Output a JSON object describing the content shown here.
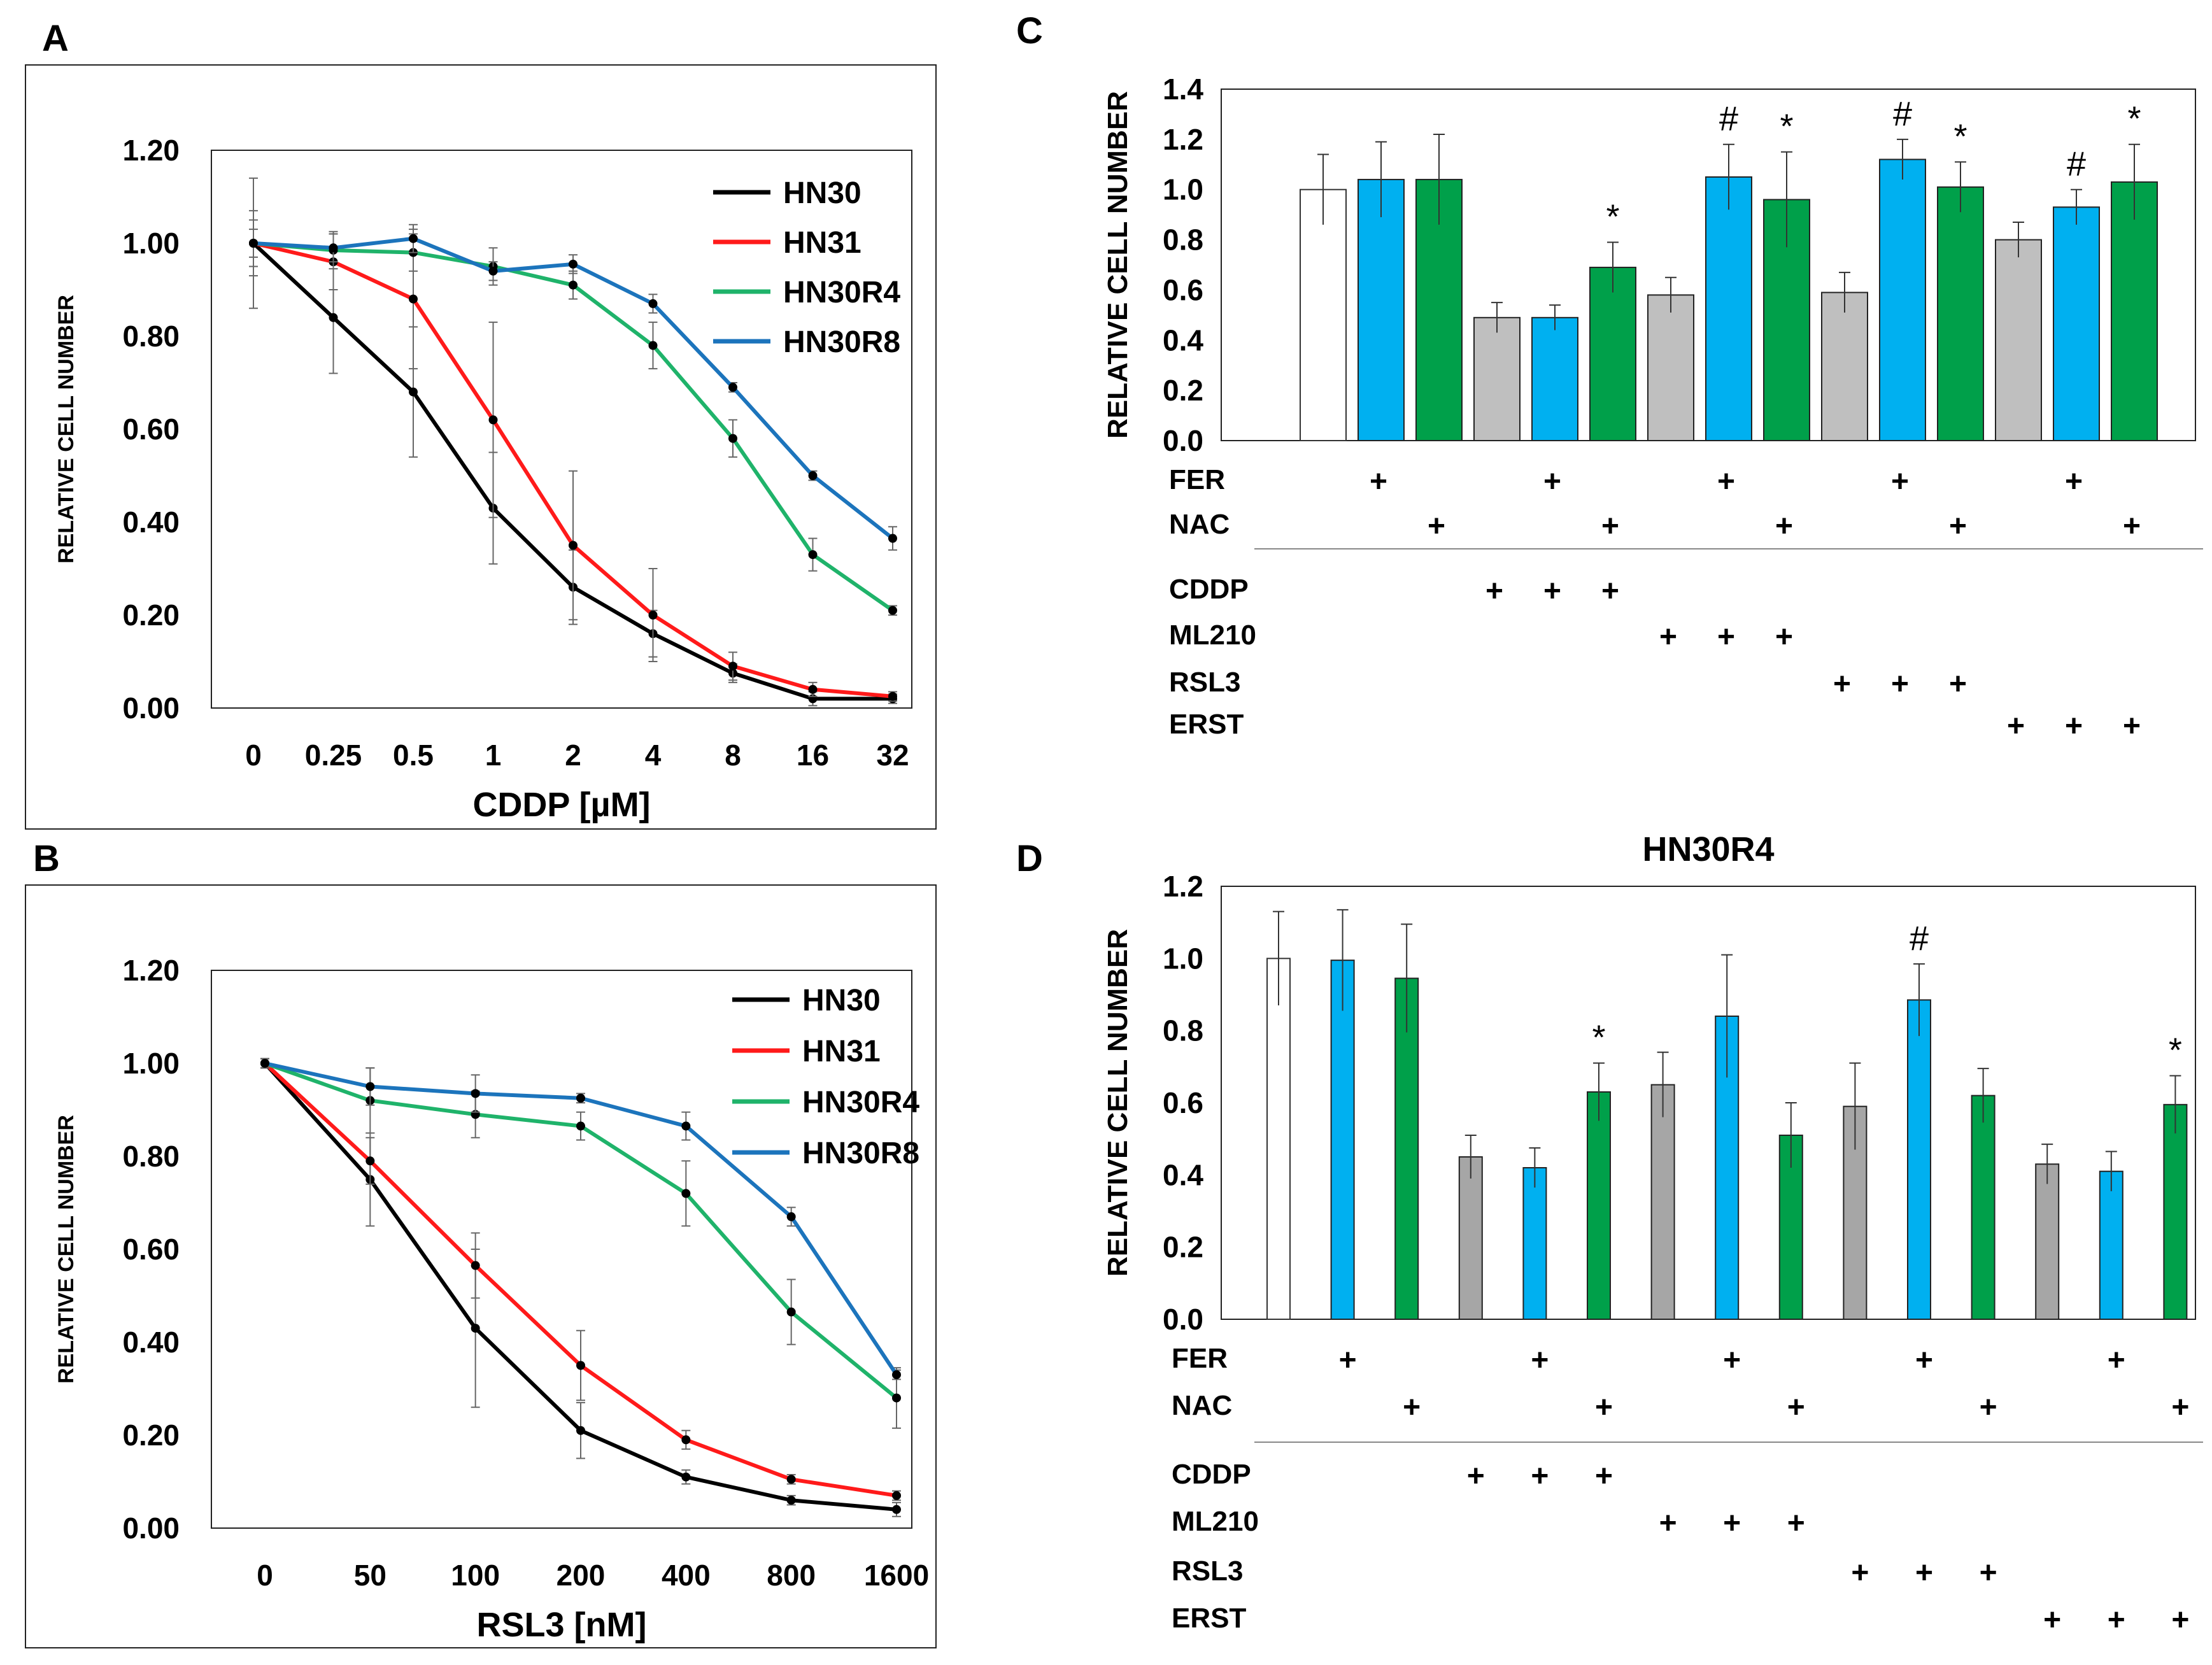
{
  "colors": {
    "HN30": "#000000",
    "HN31": "#ff1a1a",
    "HN30R4": "#1fb36a",
    "HN30R8": "#1c74bc",
    "ctrl": "#ffffff",
    "ctrl_stroke": "#333333",
    "fer": "#00b0f0",
    "nac": "#00a04a",
    "drug": "#bfbfbf",
    "drug_d": "#a6a6a6"
  },
  "panels": {
    "A": "A",
    "B": "B",
    "C": "C",
    "D": "D"
  },
  "chart_data": [
    {
      "id": "A",
      "type": "line",
      "categories": [
        "0",
        "0.25",
        "0.5",
        "1",
        "2",
        "4",
        "8",
        "16",
        "32"
      ],
      "xlabel": "CDDP [µM]",
      "ylabel": "RELATIVE CELL NUMBER",
      "ylim": [
        0,
        1.2
      ],
      "yticks": [
        "0.00",
        "0.20",
        "0.40",
        "0.60",
        "0.80",
        "1.00",
        "1.20"
      ],
      "legend_position": "top-right",
      "series": [
        {
          "name": "HN30",
          "values": [
            1.0,
            0.84,
            0.68,
            0.43,
            0.26,
            0.16,
            0.075,
            0.02,
            0.02
          ],
          "err": [
            0.14,
            0.12,
            0.14,
            0.12,
            0.08,
            0.05,
            0.02,
            0.015,
            0.01
          ]
        },
        {
          "name": "HN31",
          "values": [
            1.0,
            0.96,
            0.88,
            0.62,
            0.35,
            0.2,
            0.09,
            0.04,
            0.025
          ],
          "err": [
            0.07,
            0.06,
            0.15,
            0.21,
            0.16,
            0.1,
            0.03,
            0.015,
            0.01
          ]
        },
        {
          "name": "HN30R4",
          "values": [
            1.0,
            0.985,
            0.98,
            0.95,
            0.91,
            0.78,
            0.58,
            0.33,
            0.21
          ],
          "err": [
            0.05,
            0.04,
            0.04,
            0.04,
            0.03,
            0.05,
            0.04,
            0.035,
            0.01
          ]
        },
        {
          "name": "HN30R8",
          "values": [
            1.0,
            0.99,
            1.01,
            0.94,
            0.955,
            0.87,
            0.69,
            0.5,
            0.365
          ],
          "err": [
            0.03,
            0.03,
            0.03,
            0.02,
            0.02,
            0.02,
            0.01,
            0.01,
            0.025
          ]
        }
      ]
    },
    {
      "id": "B",
      "type": "line",
      "categories": [
        "0",
        "50",
        "100",
        "200",
        "400",
        "800",
        "1600"
      ],
      "xlabel": "RSL3 [nM]",
      "ylabel": "RELATIVE CELL NUMBER",
      "ylim": [
        0,
        1.2
      ],
      "yticks": [
        "0.00",
        "0.20",
        "0.40",
        "0.60",
        "0.80",
        "1.00",
        "1.20"
      ],
      "legend_position": "top-right",
      "series": [
        {
          "name": "HN30",
          "values": [
            1.0,
            0.75,
            0.43,
            0.21,
            0.11,
            0.06,
            0.04
          ],
          "err": [
            0.01,
            0.1,
            0.17,
            0.06,
            0.015,
            0.01,
            0.015
          ]
        },
        {
          "name": "HN31",
          "values": [
            1.0,
            0.79,
            0.565,
            0.35,
            0.19,
            0.105,
            0.07
          ],
          "err": [
            0.01,
            0.05,
            0.07,
            0.075,
            0.02,
            0.01,
            0.01
          ]
        },
        {
          "name": "HN30R4",
          "values": [
            1.0,
            0.92,
            0.89,
            0.865,
            0.72,
            0.465,
            0.28
          ],
          "err": [
            0.01,
            0.07,
            0.05,
            0.03,
            0.07,
            0.07,
            0.065
          ]
        },
        {
          "name": "HN30R8",
          "values": [
            1.0,
            0.95,
            0.935,
            0.925,
            0.865,
            0.67,
            0.33
          ],
          "err": [
            0.01,
            0.04,
            0.04,
            0.01,
            0.03,
            0.02,
            0.01
          ]
        }
      ]
    },
    {
      "id": "C",
      "type": "bar",
      "title": "",
      "ylabel": "RELATIVE CELL NUMBER",
      "ylim": [
        0,
        1.4
      ],
      "yticks": [
        "0.0",
        "0.2",
        "0.4",
        "0.6",
        "0.8",
        "1.0",
        "1.2",
        "1.4"
      ],
      "values": [
        1.0,
        1.04,
        1.04,
        0.49,
        0.49,
        0.69,
        0.58,
        1.05,
        0.96,
        0.59,
        1.12,
        1.01,
        0.8,
        0.93,
        1.03
      ],
      "err": [
        0.14,
        0.15,
        0.18,
        0.06,
        0.05,
        0.1,
        0.07,
        0.13,
        0.19,
        0.08,
        0.08,
        0.1,
        0.07,
        0.07,
        0.15
      ],
      "kind": [
        "ctrl",
        "fer",
        "nac",
        "drug",
        "fer",
        "nac",
        "drug",
        "fer",
        "nac",
        "drug",
        "fer",
        "nac",
        "drug",
        "fer",
        "nac"
      ],
      "annotations": [
        "",
        "",
        "",
        "",
        "",
        "*",
        "",
        "#",
        "*",
        "",
        "#",
        "*",
        "",
        "#",
        "*"
      ],
      "rows": [
        {
          "label": "FER",
          "marks": [
            1,
            4,
            7,
            10,
            13
          ]
        },
        {
          "label": "NAC",
          "marks": [
            2,
            5,
            8,
            11,
            14
          ]
        },
        {
          "label": "CDDP",
          "marks": [
            3,
            4,
            5
          ]
        },
        {
          "label": "ML210",
          "marks": [
            6,
            7,
            8
          ]
        },
        {
          "label": "RSL3",
          "marks": [
            9,
            10,
            11
          ]
        },
        {
          "label": "ERST",
          "marks": [
            12,
            13,
            14
          ]
        }
      ],
      "plus": "+"
    },
    {
      "id": "D",
      "type": "bar",
      "title": "HN30R4",
      "ylabel": "RELATIVE CELL NUMBER",
      "ylim": [
        0,
        1.2
      ],
      "yticks": [
        "0.0",
        "0.2",
        "0.4",
        "0.6",
        "0.8",
        "1.0",
        "1.2"
      ],
      "values": [
        1.0,
        0.995,
        0.945,
        0.45,
        0.42,
        0.63,
        0.65,
        0.84,
        0.51,
        0.59,
        0.885,
        0.62,
        0.43,
        0.41,
        0.595
      ],
      "err": [
        0.13,
        0.14,
        0.15,
        0.06,
        0.055,
        0.08,
        0.09,
        0.17,
        0.09,
        0.12,
        0.1,
        0.075,
        0.055,
        0.055,
        0.08
      ],
      "kind": [
        "ctrl",
        "fer",
        "nac",
        "drug",
        "fer",
        "nac",
        "drug",
        "fer",
        "nac",
        "drug",
        "fer",
        "nac",
        "drug",
        "fer",
        "nac"
      ],
      "annotations": [
        "",
        "",
        "",
        "",
        "",
        "*",
        "",
        "",
        "",
        "",
        "#",
        "",
        "",
        "",
        "*"
      ],
      "rows": [
        {
          "label": "FER",
          "marks": [
            1,
            4,
            7,
            10,
            13
          ]
        },
        {
          "label": "NAC",
          "marks": [
            2,
            5,
            8,
            11,
            14
          ]
        },
        {
          "label": "CDDP",
          "marks": [
            3,
            4,
            5
          ]
        },
        {
          "label": "ML210",
          "marks": [
            6,
            7,
            8
          ]
        },
        {
          "label": "RSL3",
          "marks": [
            9,
            10,
            11
          ]
        },
        {
          "label": "ERST",
          "marks": [
            12,
            13,
            14
          ]
        }
      ],
      "plus": "+"
    }
  ]
}
